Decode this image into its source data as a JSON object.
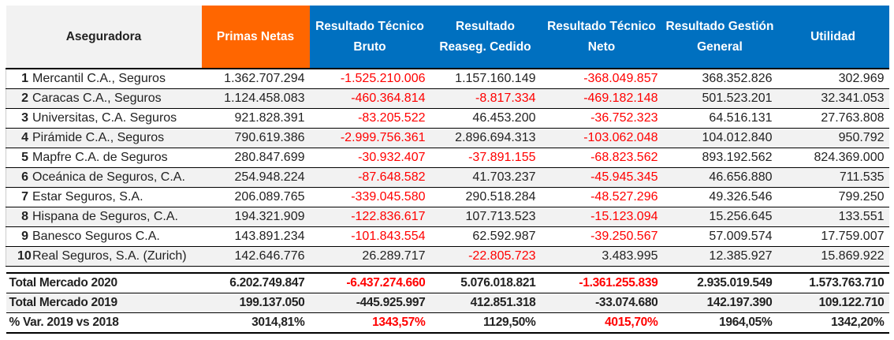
{
  "headers": [
    "Aseguradora",
    "Primas Netas",
    "Resultado Técnico Bruto",
    "Resultado Reaseg. Cedido",
    "Resultado Técnico Neto",
    "Resultado Gestión General",
    "Utilidad"
  ],
  "colors": {
    "primas_header": "#ff6600",
    "other_header": "#0070c0",
    "negative": "#ff0000"
  },
  "rows": [
    {
      "rank": "1",
      "name": "Mercantil C.A., Seguros",
      "values": [
        "1.362.707.294",
        "-1.525.210.006",
        "1.157.160.149",
        "-368.049.857",
        "368.352.826",
        "302.969"
      ],
      "red": [
        1,
        3
      ]
    },
    {
      "rank": "2",
      "name": "Caracas C.A., Seguros",
      "values": [
        "1.124.458.083",
        "-460.364.814",
        "-8.817.334",
        "-469.182.148",
        "501.523.201",
        "32.341.053"
      ],
      "red": [
        1,
        2,
        3
      ]
    },
    {
      "rank": "3",
      "name": "Universitas, C.A. Seguros",
      "values": [
        "921.828.391",
        "-83.205.522",
        "46.453.200",
        "-36.752.323",
        "64.516.131",
        "27.763.808"
      ],
      "red": [
        1,
        3
      ]
    },
    {
      "rank": "4",
      "name": "Pirámide C.A., Seguros",
      "values": [
        "790.619.386",
        "-2.999.756.361",
        "2.896.694.313",
        "-103.062.048",
        "104.012.840",
        "950.792"
      ],
      "red": [
        1,
        3
      ]
    },
    {
      "rank": "5",
      "name": "Mapfre C.A. de Seguros",
      "values": [
        "280.847.699",
        "-30.932.407",
        "-37.891.155",
        "-68.823.562",
        "893.192.562",
        "824.369.000"
      ],
      "red": [
        1,
        2,
        3
      ]
    },
    {
      "rank": "6",
      "name": "Oceánica de Seguros, C.A.",
      "values": [
        "254.948.224",
        "-87.648.582",
        "41.703.237",
        "-45.945.345",
        "46.656.880",
        "711.535"
      ],
      "red": [
        1,
        3
      ]
    },
    {
      "rank": "7",
      "name": "Estar Seguros, S.A.",
      "values": [
        "206.089.765",
        "-339.045.580",
        "290.518.284",
        "-48.527.296",
        "49.326.546",
        "799.250"
      ],
      "red": [
        1,
        3
      ]
    },
    {
      "rank": "8",
      "name": "Hispana de Seguros, C.A.",
      "values": [
        "194.321.909",
        "-122.836.617",
        "107.713.523",
        "-15.123.094",
        "15.256.645",
        "133.551"
      ],
      "red": [
        1,
        3
      ]
    },
    {
      "rank": "9",
      "name": "Banesco Seguros C.A.",
      "values": [
        "143.891.234",
        "-101.843.554",
        "62.592.987",
        "-39.250.567",
        "57.009.574",
        "17.759.007"
      ],
      "red": [
        1,
        3
      ]
    },
    {
      "rank": "10",
      "name": "Real Seguros, S.A. (Zurich)",
      "values": [
        "142.646.776",
        "26.289.717",
        "-22.805.723",
        "3.483.995",
        "12.385.927",
        "15.869.922"
      ],
      "red": [
        2
      ]
    }
  ],
  "totals": [
    {
      "label": "Total Mercado 2020",
      "values": [
        "6.202.749.847",
        "-6.437.274.660",
        "5.076.018.821",
        "-1.361.255.839",
        "2.935.019.549",
        "1.573.763.710"
      ],
      "red": [
        1,
        3
      ]
    },
    {
      "label": "Total Mercado 2019",
      "values": [
        "199.137.050",
        "-445.925.997",
        "412.851.318",
        "-33.074.680",
        "142.197.390",
        "109.122.710"
      ],
      "red": []
    },
    {
      "label": "% Var. 2019 vs 2018",
      "values": [
        "3014,81%",
        "1343,57%",
        "1129,50%",
        "4015,70%",
        "1964,05%",
        "1342,20%"
      ],
      "red": [
        1,
        3
      ]
    }
  ]
}
